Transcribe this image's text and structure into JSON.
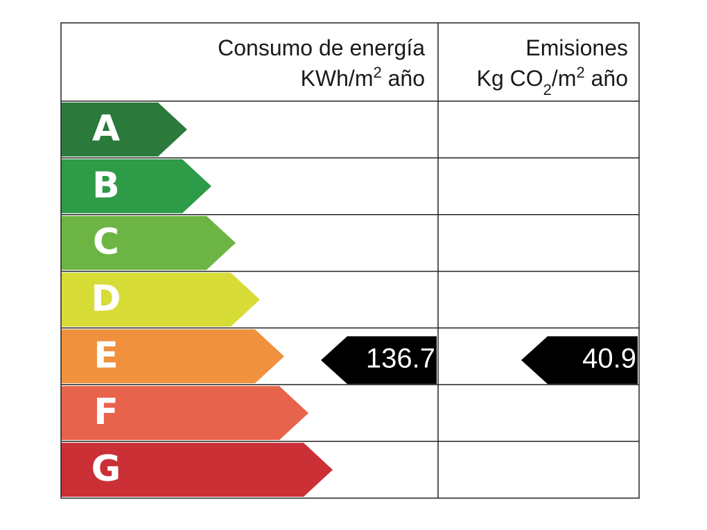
{
  "header": {
    "energy": {
      "line1": "Consumo de energía",
      "line2": [
        "KWh/m",
        "2",
        " año"
      ]
    },
    "emissions": {
      "line1": "Emisiones",
      "line2": [
        "Kg CO",
        "2",
        "/m",
        "2",
        " año"
      ]
    }
  },
  "rows": [
    {
      "letter": "A",
      "color": "#2b7a3b"
    },
    {
      "letter": "B",
      "color": "#2e9b48"
    },
    {
      "letter": "C",
      "color": "#6cb545"
    },
    {
      "letter": "D",
      "color": "#d8dc36"
    },
    {
      "letter": "E",
      "color": "#f0913e",
      "energy": 136.7,
      "emissions": 40.9
    },
    {
      "letter": "F",
      "color": "#e8634b"
    },
    {
      "letter": "G",
      "color": "#cb3037"
    }
  ]
}
